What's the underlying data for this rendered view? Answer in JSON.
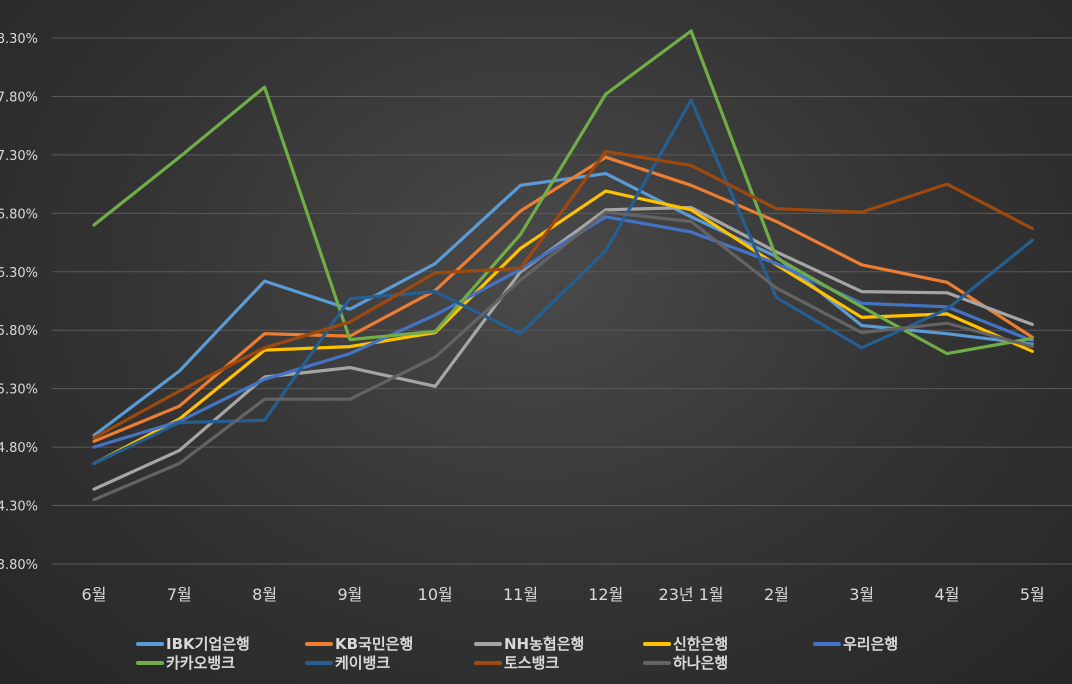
{
  "chart_data": {
    "type": "line",
    "title": "",
    "xlabel": "",
    "ylabel": "",
    "categories": [
      "6월",
      "7월",
      "8월",
      "9월",
      "10월",
      "11월",
      "12월",
      "23년 1월",
      "2월",
      "3월",
      "4월",
      "5월"
    ],
    "y_tick_labels": [
      "3.80%",
      "4.30%",
      "4.80%",
      "5.30%",
      "5.80%",
      "6.30%",
      "6.80%",
      "7.30%",
      "7.80%",
      "8.30%"
    ],
    "ylim": [
      3.8,
      8.3
    ],
    "grid": true,
    "legend_position": "bottom",
    "series": [
      {
        "name": "IBK기업은행",
        "color": "#5b9bd5",
        "values": [
          4.9,
          5.45,
          6.22,
          5.98,
          6.37,
          7.04,
          7.14,
          6.77,
          6.43,
          5.84,
          5.77,
          5.68
        ]
      },
      {
        "name": "KB국민은행",
        "color": "#ed7d31",
        "values": [
          4.85,
          5.15,
          5.77,
          5.75,
          6.14,
          6.82,
          7.28,
          7.04,
          6.73,
          6.36,
          6.21,
          5.74
        ]
      },
      {
        "name": "NH농협은행",
        "color": "#a5a5a5",
        "values": [
          4.44,
          4.77,
          5.4,
          5.48,
          5.32,
          6.3,
          6.83,
          6.85,
          6.47,
          6.13,
          6.12,
          5.85
        ]
      },
      {
        "name": "신한은행",
        "color": "#ffc000",
        "values": [
          4.66,
          5.04,
          5.63,
          5.66,
          5.78,
          6.5,
          6.99,
          6.83,
          6.36,
          5.91,
          5.94,
          5.62
        ]
      },
      {
        "name": "우리은행",
        "color": "#4472c4",
        "values": [
          4.8,
          5.02,
          5.38,
          5.6,
          5.93,
          6.32,
          6.77,
          6.64,
          6.37,
          6.03,
          6.0,
          5.71
        ]
      },
      {
        "name": "카카오뱅크",
        "color": "#70ad47",
        "values": [
          6.7,
          7.28,
          7.88,
          5.72,
          5.79,
          6.62,
          7.82,
          8.36,
          6.42,
          6.0,
          5.6,
          5.73
        ]
      },
      {
        "name": "케이뱅크",
        "color": "#255e91",
        "values": [
          4.66,
          5.01,
          5.03,
          6.07,
          6.13,
          5.77,
          6.48,
          7.77,
          6.08,
          5.65,
          5.98,
          6.57
        ]
      },
      {
        "name": "토스뱅크",
        "color": "#9e480e",
        "values": [
          4.88,
          5.28,
          5.65,
          5.87,
          6.29,
          6.33,
          7.33,
          7.21,
          6.84,
          6.81,
          7.05,
          6.67
        ]
      },
      {
        "name": "하나은행",
        "color": "#636363",
        "values": [
          4.35,
          4.66,
          5.21,
          5.21,
          5.57,
          6.23,
          6.81,
          6.73,
          6.16,
          5.78,
          5.86,
          5.66
        ]
      }
    ]
  }
}
